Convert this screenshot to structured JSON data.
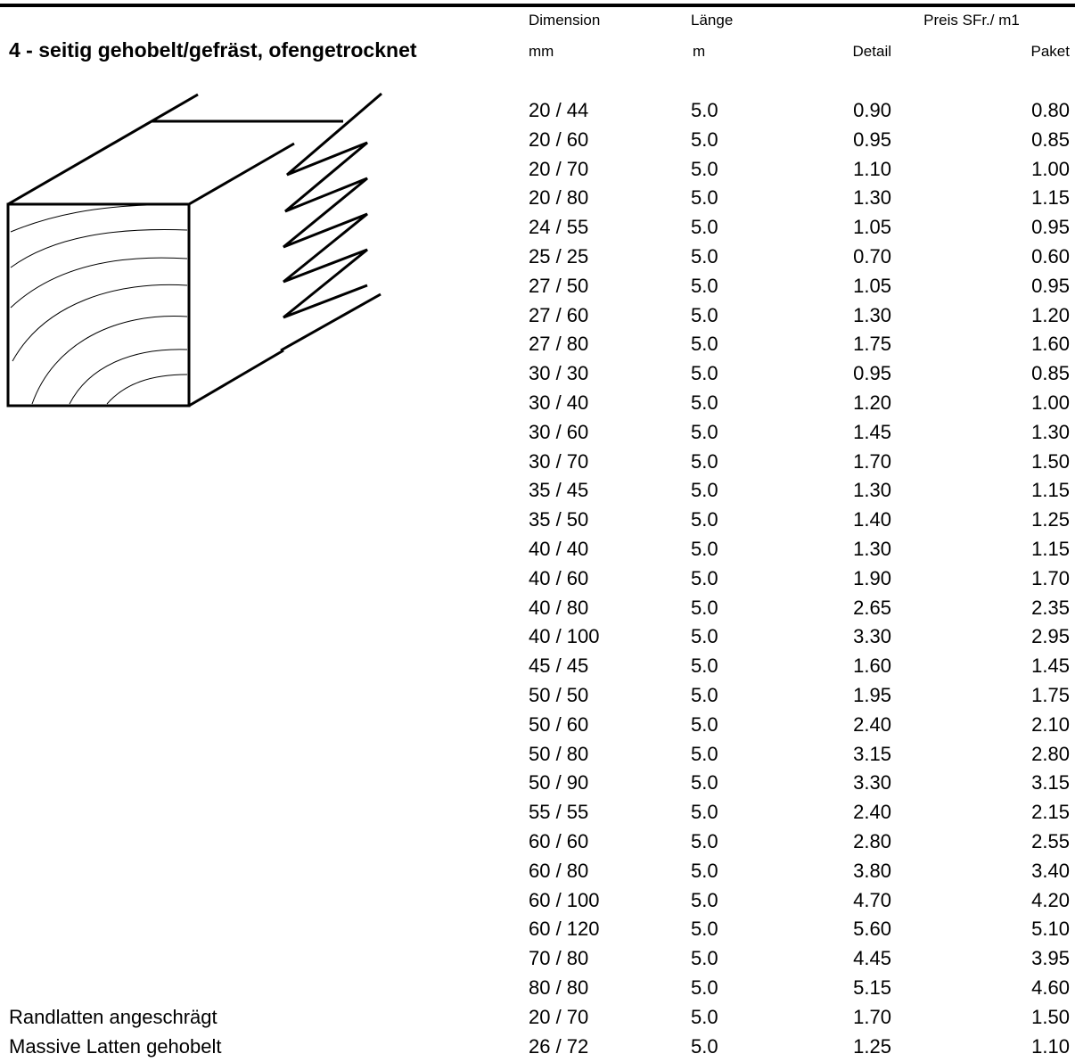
{
  "header": {
    "dimension": "Dimension",
    "length": "Länge",
    "price": "Preis SFr./ m1",
    "section": "4 - seitig gehobelt/gefräst, ofengetrocknet",
    "dimension_unit": "mm",
    "length_unit": "m",
    "detail": "Detail",
    "paket": "Paket"
  },
  "table": {
    "rows": [
      {
        "dimension": "20 / 44",
        "length": "5.0",
        "detail": "0.90",
        "paket": "0.80"
      },
      {
        "dimension": "20 / 60",
        "length": "5.0",
        "detail": "0.95",
        "paket": "0.85"
      },
      {
        "dimension": "20 / 70",
        "length": "5.0",
        "detail": "1.10",
        "paket": "1.00"
      },
      {
        "dimension": "20 / 80",
        "length": "5.0",
        "detail": "1.30",
        "paket": "1.15"
      },
      {
        "dimension": "24 / 55",
        "length": "5.0",
        "detail": "1.05",
        "paket": "0.95"
      },
      {
        "dimension": "25 / 25",
        "length": "5.0",
        "detail": "0.70",
        "paket": "0.60"
      },
      {
        "dimension": "27 / 50",
        "length": "5.0",
        "detail": "1.05",
        "paket": "0.95"
      },
      {
        "dimension": "27 / 60",
        "length": "5.0",
        "detail": "1.30",
        "paket": "1.20"
      },
      {
        "dimension": "27 / 80",
        "length": "5.0",
        "detail": "1.75",
        "paket": "1.60"
      },
      {
        "dimension": "30 / 30",
        "length": "5.0",
        "detail": "0.95",
        "paket": "0.85"
      },
      {
        "dimension": "30 / 40",
        "length": "5.0",
        "detail": "1.20",
        "paket": "1.00"
      },
      {
        "dimension": "30 / 60",
        "length": "5.0",
        "detail": "1.45",
        "paket": "1.30"
      },
      {
        "dimension": "30 / 70",
        "length": "5.0",
        "detail": "1.70",
        "paket": "1.50"
      },
      {
        "dimension": "35 / 45",
        "length": "5.0",
        "detail": "1.30",
        "paket": "1.15"
      },
      {
        "dimension": "35 / 50",
        "length": "5.0",
        "detail": "1.40",
        "paket": "1.25"
      },
      {
        "dimension": "40 / 40",
        "length": "5.0",
        "detail": "1.30",
        "paket": "1.15"
      },
      {
        "dimension": "40 / 60",
        "length": "5.0",
        "detail": "1.90",
        "paket": "1.70"
      },
      {
        "dimension": "40 / 80",
        "length": "5.0",
        "detail": "2.65",
        "paket": "2.35"
      },
      {
        "dimension": "40 / 100",
        "length": "5.0",
        "detail": "3.30",
        "paket": "2.95"
      },
      {
        "dimension": "45 / 45",
        "length": "5.0",
        "detail": "1.60",
        "paket": "1.45"
      },
      {
        "dimension": "50 / 50",
        "length": "5.0",
        "detail": "1.95",
        "paket": "1.75"
      },
      {
        "dimension": "50 / 60",
        "length": "5.0",
        "detail": "2.40",
        "paket": "2.10"
      },
      {
        "dimension": "50 / 80",
        "length": "5.0",
        "detail": "3.15",
        "paket": "2.80"
      },
      {
        "dimension": "50 / 90",
        "length": "5.0",
        "detail": "3.30",
        "paket": "3.15"
      },
      {
        "dimension": "55 / 55",
        "length": "5.0",
        "detail": "2.40",
        "paket": "2.15"
      },
      {
        "dimension": "60 / 60",
        "length": "5.0",
        "detail": "2.80",
        "paket": "2.55"
      },
      {
        "dimension": "60 / 80",
        "length": "5.0",
        "detail": "3.80",
        "paket": "3.40"
      },
      {
        "dimension": "60 / 100",
        "length": "5.0",
        "detail": "4.70",
        "paket": "4.20"
      },
      {
        "dimension": "60 / 120",
        "length": "5.0",
        "detail": "5.60",
        "paket": "5.10"
      },
      {
        "dimension": "70 / 80",
        "length": "5.0",
        "detail": "4.45",
        "paket": "3.95"
      },
      {
        "dimension": "80 / 80",
        "length": "5.0",
        "detail": "5.15",
        "paket": "4.60"
      },
      {
        "label": "Randlatten angeschrägt",
        "dimension": "20 / 70",
        "length": "5.0",
        "detail": "1.70",
        "paket": "1.50"
      },
      {
        "label": "Massive Latten gehobelt",
        "dimension": "26 / 72",
        "length": "5.0",
        "detail": "1.25",
        "paket": "1.10"
      }
    ]
  }
}
